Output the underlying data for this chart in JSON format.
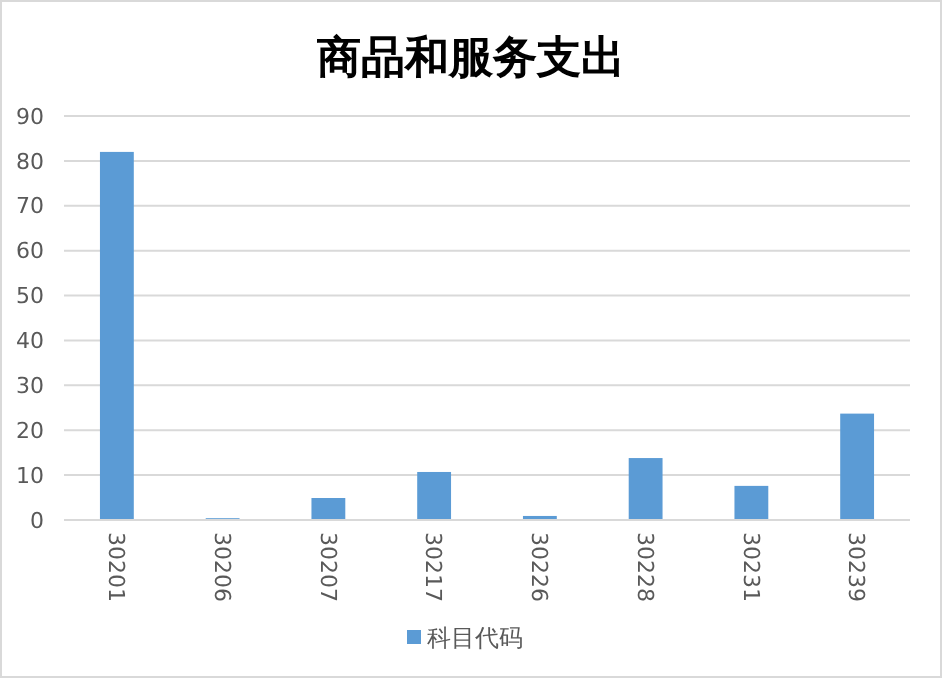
{
  "chart_data": {
    "type": "bar",
    "title": "商品和服务支出",
    "categories": [
      "30201",
      "30206",
      "30207",
      "30217",
      "30226",
      "30228",
      "30231",
      "30239"
    ],
    "series": [
      {
        "name": "科目代码",
        "color": "#5b9bd5",
        "values": [
          82,
          0.4,
          4.9,
          10.7,
          0.9,
          13.8,
          7.6,
          23.7
        ]
      }
    ],
    "ylim": [
      0,
      90
    ],
    "yticks": [
      0,
      10,
      20,
      30,
      40,
      50,
      60,
      70,
      80,
      90
    ],
    "grid": "y",
    "legend": "bottom"
  }
}
